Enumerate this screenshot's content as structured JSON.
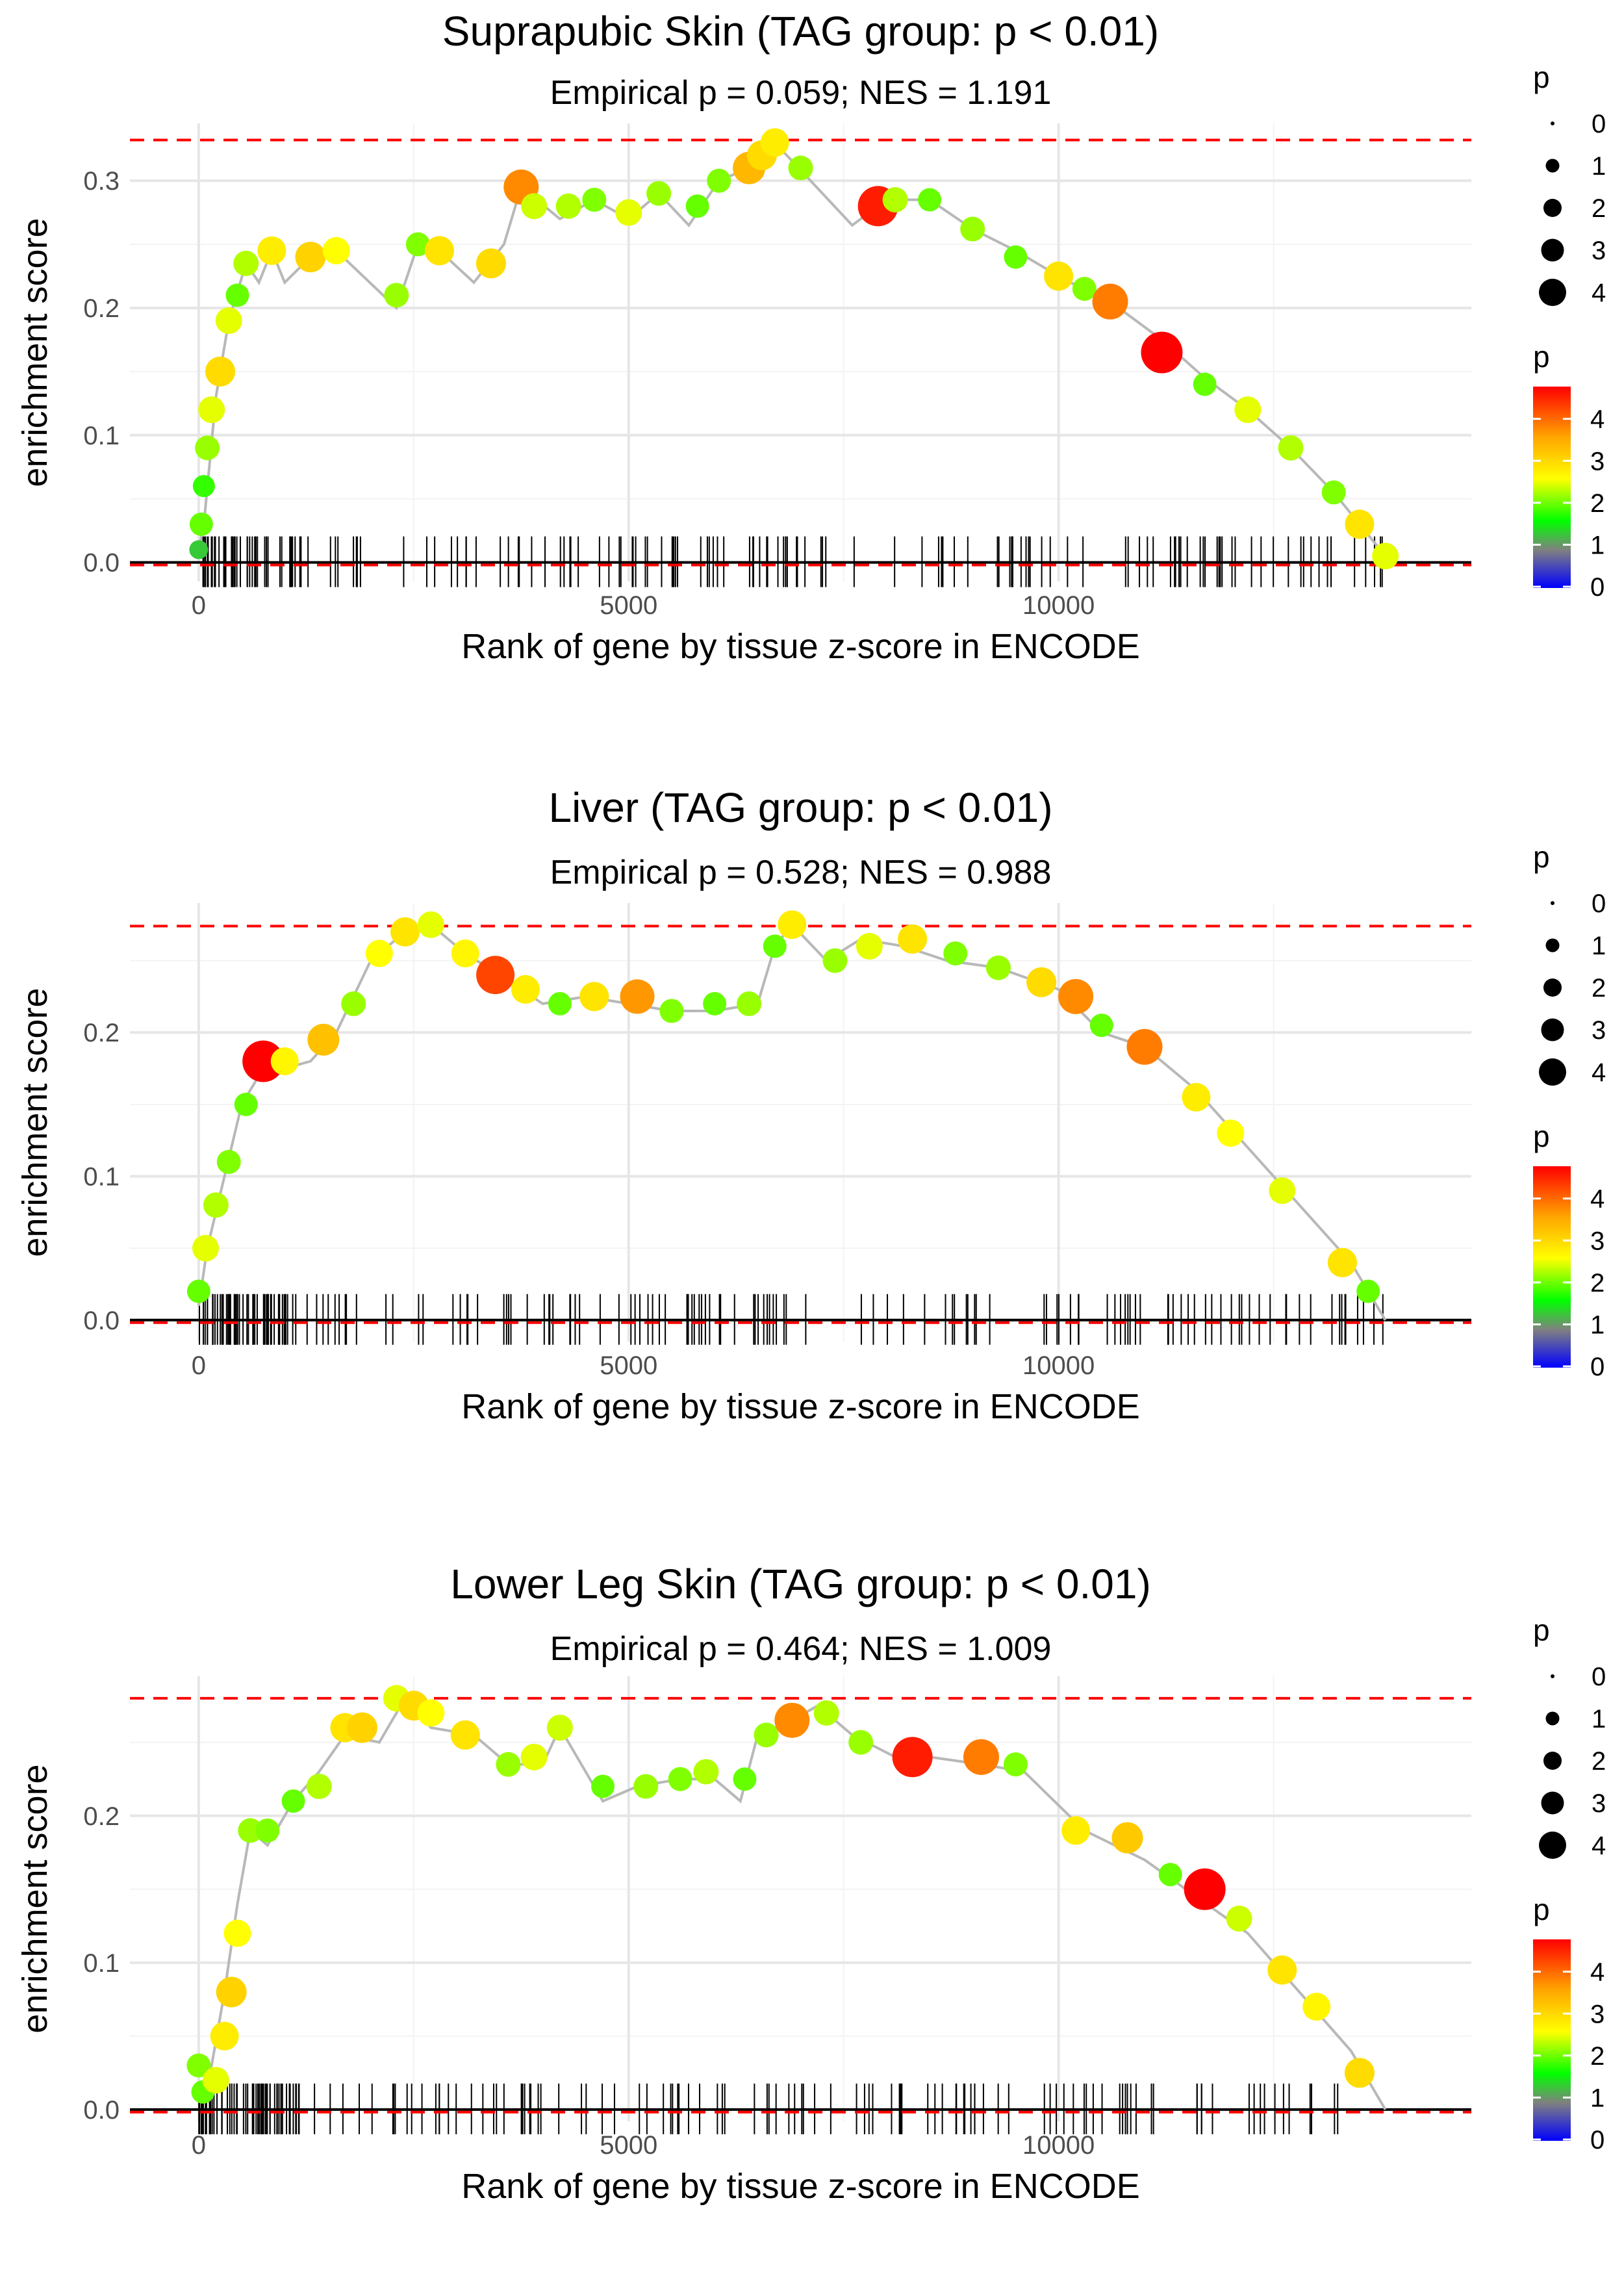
{
  "chart_data": [
    {
      "type": "scatter",
      "title": "Suprapubic Skin (TAG group: p < 0.01)",
      "subtitle": "Empirical p = 0.059; NES = 1.191",
      "xlabel": "Rank of gene by tissue z-score in ENCODE",
      "ylabel": "enrichment score",
      "xlim": [
        -800,
        14800
      ],
      "ylim": [
        -0.015,
        0.345
      ],
      "xticks": [
        0,
        5000,
        10000
      ],
      "xtick_labels": [
        "0",
        "5000",
        "10000"
      ],
      "yticks": [
        0.0,
        0.1,
        0.2,
        0.3
      ],
      "ytick_labels": [
        "0.0",
        "0.1",
        "0.2",
        "0.3"
      ],
      "max_es": 0.332,
      "path": [
        [
          0,
          0.01
        ],
        [
          60,
          0.03
        ],
        [
          200,
          0.13
        ],
        [
          350,
          0.19
        ],
        [
          550,
          0.235
        ],
        [
          700,
          0.22
        ],
        [
          850,
          0.245
        ],
        [
          1000,
          0.22
        ],
        [
          1300,
          0.24
        ],
        [
          1600,
          0.245
        ],
        [
          2300,
          0.2
        ],
        [
          2550,
          0.25
        ],
        [
          2800,
          0.245
        ],
        [
          3200,
          0.22
        ],
        [
          3550,
          0.25
        ],
        [
          3750,
          0.295
        ],
        [
          4200,
          0.27
        ],
        [
          4600,
          0.285
        ],
        [
          5000,
          0.27
        ],
        [
          5350,
          0.29
        ],
        [
          5700,
          0.265
        ],
        [
          6050,
          0.3
        ],
        [
          6400,
          0.31
        ],
        [
          6700,
          0.33
        ],
        [
          7600,
          0.265
        ],
        [
          8000,
          0.285
        ],
        [
          8500,
          0.285
        ],
        [
          9000,
          0.262
        ],
        [
          9500,
          0.245
        ],
        [
          10000,
          0.225
        ],
        [
          10700,
          0.2
        ],
        [
          11200,
          0.175
        ],
        [
          11700,
          0.145
        ],
        [
          12200,
          0.12
        ],
        [
          12700,
          0.09
        ],
        [
          13200,
          0.055
        ],
        [
          13800,
          0.005
        ]
      ],
      "points": [
        [
          0,
          0.01,
          1.3
        ],
        [
          30,
          0.03,
          2.0
        ],
        [
          60,
          0.06,
          1.8
        ],
        [
          100,
          0.09,
          2.2
        ],
        [
          150,
          0.12,
          2.5
        ],
        [
          250,
          0.15,
          3.0
        ],
        [
          350,
          0.19,
          2.5
        ],
        [
          450,
          0.21,
          2.0
        ],
        [
          550,
          0.235,
          2.3
        ],
        [
          850,
          0.245,
          2.8
        ],
        [
          1300,
          0.24,
          3.1
        ],
        [
          1600,
          0.245,
          2.6
        ],
        [
          2300,
          0.21,
          2.2
        ],
        [
          2550,
          0.25,
          2.1
        ],
        [
          2800,
          0.245,
          2.9
        ],
        [
          3400,
          0.235,
          3.0
        ],
        [
          3750,
          0.295,
          3.8
        ],
        [
          3900,
          0.28,
          2.4
        ],
        [
          4300,
          0.28,
          2.3
        ],
        [
          4600,
          0.285,
          2.1
        ],
        [
          5000,
          0.275,
          2.5
        ],
        [
          5350,
          0.29,
          2.2
        ],
        [
          5800,
          0.28,
          2.0
        ],
        [
          6050,
          0.3,
          2.1
        ],
        [
          6400,
          0.31,
          3.4
        ],
        [
          6550,
          0.32,
          3.0
        ],
        [
          6700,
          0.33,
          2.8
        ],
        [
          7000,
          0.31,
          2.2
        ],
        [
          7900,
          0.28,
          4.6
        ],
        [
          8100,
          0.285,
          2.3
        ],
        [
          8500,
          0.285,
          2.0
        ],
        [
          9000,
          0.262,
          2.2
        ],
        [
          9500,
          0.24,
          2.0
        ],
        [
          10000,
          0.225,
          2.9
        ],
        [
          10300,
          0.215,
          2.1
        ],
        [
          10600,
          0.205,
          3.9
        ],
        [
          11200,
          0.165,
          4.8
        ],
        [
          11700,
          0.14,
          2.0
        ],
        [
          12200,
          0.12,
          2.5
        ],
        [
          12700,
          0.09,
          2.3
        ],
        [
          13200,
          0.055,
          2.1
        ],
        [
          13500,
          0.03,
          2.9
        ],
        [
          13800,
          0.005,
          2.5
        ]
      ]
    },
    {
      "type": "scatter",
      "title": "Liver (TAG group: p < 0.01)",
      "subtitle": "Empirical p = 0.528; NES = 0.988",
      "xlabel": "Rank of gene by tissue z-score in ENCODE",
      "ylabel": "enrichment score",
      "xlim": [
        -800,
        14800
      ],
      "ylim": [
        -0.015,
        0.29
      ],
      "xticks": [
        0,
        5000,
        10000
      ],
      "xtick_labels": [
        "0",
        "5000",
        "10000"
      ],
      "yticks": [
        0.0,
        0.1,
        0.2
      ],
      "ytick_labels": [
        "0.0",
        "0.1",
        "0.2"
      ],
      "max_es": 0.274,
      "path": [
        [
          0,
          0.01
        ],
        [
          100,
          0.05
        ],
        [
          300,
          0.1
        ],
        [
          500,
          0.15
        ],
        [
          700,
          0.17
        ],
        [
          1000,
          0.175
        ],
        [
          1300,
          0.18
        ],
        [
          1600,
          0.2
        ],
        [
          2000,
          0.25
        ],
        [
          2400,
          0.27
        ],
        [
          2700,
          0.275
        ],
        [
          3100,
          0.255
        ],
        [
          3500,
          0.24
        ],
        [
          4000,
          0.22
        ],
        [
          4500,
          0.225
        ],
        [
          5000,
          0.22
        ],
        [
          5500,
          0.215
        ],
        [
          6000,
          0.215
        ],
        [
          6500,
          0.22
        ],
        [
          6700,
          0.26
        ],
        [
          6900,
          0.275
        ],
        [
          7300,
          0.25
        ],
        [
          7700,
          0.265
        ],
        [
          8200,
          0.26
        ],
        [
          8700,
          0.25
        ],
        [
          9300,
          0.245
        ],
        [
          10000,
          0.23
        ],
        [
          10500,
          0.2
        ],
        [
          11000,
          0.19
        ],
        [
          11600,
          0.16
        ],
        [
          12200,
          0.12
        ],
        [
          12800,
          0.08
        ],
        [
          13400,
          0.04
        ],
        [
          13800,
          0.0
        ]
      ],
      "points": [
        [
          0,
          0.02,
          2.0
        ],
        [
          80,
          0.05,
          2.5
        ],
        [
          200,
          0.08,
          2.3
        ],
        [
          350,
          0.11,
          2.1
        ],
        [
          550,
          0.15,
          2.0
        ],
        [
          750,
          0.18,
          4.8
        ],
        [
          1000,
          0.18,
          2.7
        ],
        [
          1450,
          0.195,
          3.3
        ],
        [
          1800,
          0.22,
          2.2
        ],
        [
          2100,
          0.255,
          2.6
        ],
        [
          2400,
          0.27,
          2.9
        ],
        [
          2700,
          0.275,
          2.5
        ],
        [
          3100,
          0.255,
          2.7
        ],
        [
          3450,
          0.24,
          4.3
        ],
        [
          3800,
          0.23,
          2.8
        ],
        [
          4200,
          0.22,
          2.0
        ],
        [
          4600,
          0.225,
          2.9
        ],
        [
          5100,
          0.225,
          3.7
        ],
        [
          5500,
          0.215,
          2.1
        ],
        [
          6000,
          0.22,
          2.0
        ],
        [
          6400,
          0.22,
          2.2
        ],
        [
          6700,
          0.26,
          2.0
        ],
        [
          6900,
          0.275,
          2.8
        ],
        [
          7400,
          0.25,
          2.2
        ],
        [
          7800,
          0.26,
          2.5
        ],
        [
          8300,
          0.265,
          2.9
        ],
        [
          8800,
          0.255,
          2.1
        ],
        [
          9300,
          0.245,
          2.2
        ],
        [
          9800,
          0.235,
          3.0
        ],
        [
          10200,
          0.225,
          3.8
        ],
        [
          10500,
          0.205,
          2.0
        ],
        [
          11000,
          0.19,
          3.9
        ],
        [
          11600,
          0.155,
          2.8
        ],
        [
          12000,
          0.13,
          2.6
        ],
        [
          12600,
          0.09,
          2.5
        ],
        [
          13300,
          0.04,
          2.9
        ],
        [
          13600,
          0.02,
          2.0
        ]
      ]
    },
    {
      "type": "scatter",
      "title": "Lower Leg Skin (TAG group: p < 0.01)",
      "subtitle": "Empirical p = 0.464; NES = 1.009",
      "xlabel": "Rank of gene by tissue z-score in ENCODE",
      "ylabel": "enrichment score",
      "xlim": [
        -800,
        14800
      ],
      "ylim": [
        -0.008,
        0.295
      ],
      "xticks": [
        0,
        5000,
        10000
      ],
      "xtick_labels": [
        "0",
        "5000",
        "10000"
      ],
      "yticks": [
        0.0,
        0.1,
        0.2
      ],
      "ytick_labels": [
        "0.0",
        "0.1",
        "0.2"
      ],
      "max_es": 0.28,
      "path": [
        [
          0,
          0.01
        ],
        [
          150,
          0.03
        ],
        [
          300,
          0.08
        ],
        [
          450,
          0.14
        ],
        [
          600,
          0.19
        ],
        [
          800,
          0.18
        ],
        [
          1100,
          0.21
        ],
        [
          1400,
          0.23
        ],
        [
          1700,
          0.255
        ],
        [
          2100,
          0.25
        ],
        [
          2400,
          0.28
        ],
        [
          2700,
          0.26
        ],
        [
          3200,
          0.255
        ],
        [
          3600,
          0.235
        ],
        [
          4000,
          0.235
        ],
        [
          4200,
          0.26
        ],
        [
          4700,
          0.21
        ],
        [
          5100,
          0.22
        ],
        [
          5600,
          0.225
        ],
        [
          6000,
          0.225
        ],
        [
          6300,
          0.21
        ],
        [
          6500,
          0.255
        ],
        [
          6900,
          0.265
        ],
        [
          7200,
          0.275
        ],
        [
          7600,
          0.255
        ],
        [
          8100,
          0.24
        ],
        [
          8500,
          0.24
        ],
        [
          9100,
          0.235
        ],
        [
          9600,
          0.23
        ],
        [
          10300,
          0.19
        ],
        [
          11000,
          0.17
        ],
        [
          11600,
          0.145
        ],
        [
          12200,
          0.12
        ],
        [
          12800,
          0.08
        ],
        [
          13400,
          0.04
        ],
        [
          13800,
          0.0
        ]
      ],
      "points": [
        [
          0,
          0.03,
          2.1
        ],
        [
          50,
          0.012,
          2.0
        ],
        [
          200,
          0.02,
          2.5
        ],
        [
          300,
          0.05,
          2.8
        ],
        [
          380,
          0.08,
          3.1
        ],
        [
          450,
          0.12,
          2.6
        ],
        [
          600,
          0.19,
          2.2
        ],
        [
          800,
          0.19,
          2.1
        ],
        [
          1100,
          0.21,
          2.0
        ],
        [
          1400,
          0.22,
          2.3
        ],
        [
          1700,
          0.26,
          2.9
        ],
        [
          1900,
          0.26,
          3.1
        ],
        [
          2300,
          0.28,
          2.5
        ],
        [
          2500,
          0.275,
          3.0
        ],
        [
          2700,
          0.27,
          2.6
        ],
        [
          3100,
          0.255,
          2.9
        ],
        [
          3600,
          0.235,
          2.2
        ],
        [
          3900,
          0.24,
          2.5
        ],
        [
          4200,
          0.26,
          2.4
        ],
        [
          4700,
          0.22,
          2.0
        ],
        [
          5200,
          0.22,
          2.2
        ],
        [
          5600,
          0.225,
          2.1
        ],
        [
          5900,
          0.23,
          2.3
        ],
        [
          6350,
          0.225,
          2.0
        ],
        [
          6600,
          0.255,
          2.2
        ],
        [
          6900,
          0.265,
          3.8
        ],
        [
          7300,
          0.27,
          2.3
        ],
        [
          7700,
          0.25,
          2.2
        ],
        [
          8300,
          0.24,
          4.6
        ],
        [
          9100,
          0.24,
          3.9
        ],
        [
          9500,
          0.235,
          2.1
        ],
        [
          10200,
          0.19,
          2.8
        ],
        [
          10800,
          0.185,
          3.2
        ],
        [
          11300,
          0.16,
          2.0
        ],
        [
          11700,
          0.15,
          4.8
        ],
        [
          12100,
          0.13,
          2.4
        ],
        [
          12600,
          0.095,
          2.9
        ],
        [
          13000,
          0.07,
          2.7
        ],
        [
          13500,
          0.025,
          3.0
        ]
      ]
    }
  ],
  "legend": {
    "size_title": "p",
    "size_values": [
      "0",
      "1",
      "2",
      "3",
      "4"
    ],
    "color_title": "p",
    "color_values": [
      "0",
      "1",
      "2",
      "3",
      "4"
    ],
    "color_stops": [
      "#0000ff",
      "#808080",
      "#00ff00",
      "#ffff00",
      "#ffa500",
      "#ff0000"
    ]
  }
}
